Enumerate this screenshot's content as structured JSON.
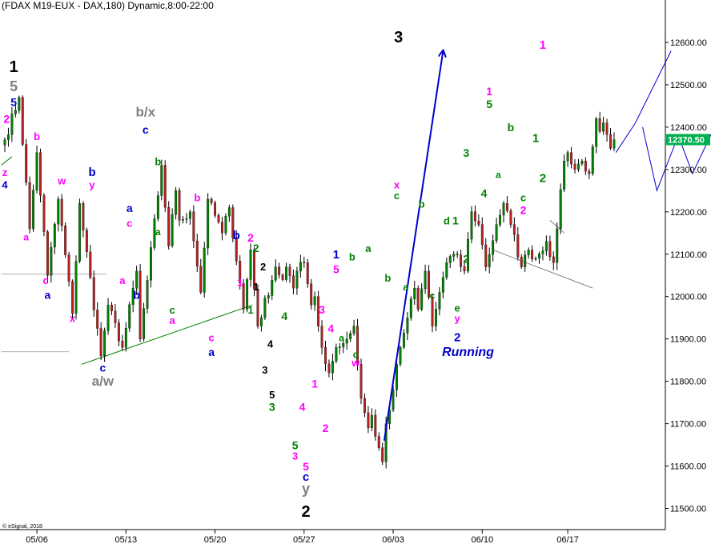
{
  "chart_data": {
    "type": "candlestick",
    "title": "(FDAX M19-EUX - DAX,180) Dynamic,8:00-22:00",
    "watermark": "© eSignal, 2018",
    "current_price": 12370.5,
    "current_price_label": "12370.50",
    "ylim": [
      11450,
      12700
    ],
    "y_ticks": [
      11500,
      11600,
      11700,
      11800,
      11900,
      12000,
      12100,
      12200,
      12300,
      12400,
      12500,
      12600
    ],
    "y_tick_labels": [
      "11500.00",
      "11600.00",
      "11700.00",
      "11800.00",
      "11900.00",
      "12000.00",
      "12100.00",
      "12200.00",
      "12300.00",
      "12400.00",
      "12500.00",
      "12600.00"
    ],
    "x_ticks": [
      {
        "label": "05/06",
        "x": 9
      },
      {
        "label": "05/13",
        "x": 34
      },
      {
        "label": "05/20",
        "x": 59
      },
      {
        "label": "05/27",
        "x": 84
      },
      {
        "label": "06/03",
        "x": 109
      },
      {
        "label": "06/10",
        "x": 134
      },
      {
        "label": "06/17",
        "x": 158
      }
    ],
    "colors": {
      "up": "#008000",
      "down": "#b22222",
      "pink": "#ff00ff",
      "green": "#008000",
      "blue": "#0000cd",
      "black": "#000000",
      "gray": "#808080",
      "projection": "#0000cd",
      "price_tag": "#00b050"
    },
    "pivots": [
      [
        0,
        12370
      ],
      [
        4,
        12470
      ],
      [
        7,
        12160
      ],
      [
        9,
        12340
      ],
      [
        12,
        12050
      ],
      [
        15,
        12230
      ],
      [
        19,
        11960
      ],
      [
        21,
        12220
      ],
      [
        27,
        11860
      ],
      [
        29,
        11980
      ],
      [
        33,
        11880
      ],
      [
        37,
        12060
      ],
      [
        38,
        11900
      ],
      [
        44,
        12310
      ],
      [
        46,
        12120
      ],
      [
        48,
        12250
      ],
      [
        49,
        12180
      ],
      [
        52,
        12200
      ],
      [
        55,
        12010
      ],
      [
        57,
        12230
      ],
      [
        61,
        12150
      ],
      [
        63,
        12210
      ],
      [
        67,
        11970
      ],
      [
        69,
        12110
      ],
      [
        71,
        11930
      ],
      [
        76,
        12070
      ],
      [
        78,
        12040
      ],
      [
        79,
        12070
      ],
      [
        81,
        12020
      ],
      [
        82,
        12060
      ],
      [
        84,
        12080
      ],
      [
        86,
        11980
      ],
      [
        87,
        12000
      ],
      [
        88,
        11930
      ],
      [
        89,
        11880
      ],
      [
        91,
        11820
      ],
      [
        93,
        11880
      ],
      [
        96,
        11900
      ],
      [
        98,
        11930
      ],
      [
        100,
        11760
      ],
      [
        102,
        11690
      ],
      [
        103,
        11720
      ],
      [
        104,
        11670
      ],
      [
        106,
        11610
      ],
      [
        107,
        11700
      ],
      [
        109,
        11780
      ],
      [
        111,
        11880
      ],
      [
        113,
        11950
      ],
      [
        115,
        12020
      ],
      [
        116,
        11970
      ],
      [
        118,
        12060
      ],
      [
        120,
        11930
      ],
      [
        122,
        12010
      ],
      [
        124,
        12080
      ],
      [
        126,
        12100
      ],
      [
        129,
        12060
      ],
      [
        131,
        12200
      ],
      [
        133,
        12170
      ],
      [
        135,
        12070
      ],
      [
        138,
        12170
      ],
      [
        140,
        12220
      ],
      [
        142,
        12170
      ],
      [
        145,
        12070
      ],
      [
        147,
        12110
      ],
      [
        149,
        12090
      ],
      [
        152,
        12130
      ],
      [
        154,
        12080
      ],
      [
        155,
        12160
      ],
      [
        157,
        12320
      ],
      [
        158,
        12340
      ],
      [
        160,
        12300
      ],
      [
        162,
        12320
      ],
      [
        164,
        12290
      ],
      [
        166,
        12420
      ],
      [
        167,
        12390
      ],
      [
        168,
        12410
      ],
      [
        170,
        12350
      ],
      [
        171,
        12370
      ]
    ],
    "trendlines": [
      {
        "name": "a-w-support",
        "color": "#008000",
        "points": [
          [
            21.5,
            11840
          ],
          [
            69.5,
            11980
          ]
        ]
      },
      {
        "name": "left-support",
        "color": "#008000",
        "points": [
          [
            -1,
            12310
          ],
          [
            2,
            12330
          ]
        ]
      },
      {
        "name": "x-c-channel",
        "color": "#808080",
        "points": [
          [
            137,
            12110
          ],
          [
            165,
            12020
          ]
        ]
      },
      {
        "name": "d-channel",
        "color": "#808080",
        "points": [
          [
            153,
            12180
          ],
          [
            157,
            12150
          ]
        ]
      },
      {
        "name": "horizontal-level-1",
        "color": "#b0b0b0",
        "points": [
          [
            -1,
            12053
          ],
          [
            28.5,
            12053
          ]
        ]
      },
      {
        "name": "horizontal-level-2",
        "color": "#b0b0b0",
        "points": [
          [
            -1,
            11870
          ],
          [
            18,
            11870
          ]
        ]
      }
    ],
    "projections": [
      {
        "name": "wave-3-arrow",
        "color": "#0000cd",
        "points": [
          [
            106.5,
            11660
          ],
          [
            123,
            12580
          ]
        ],
        "arrow": true,
        "width": 2
      },
      {
        "name": "bullish-path",
        "color": "#0000cd",
        "points": [
          [
            171.5,
            12340
          ],
          [
            177,
            12410
          ],
          [
            187,
            12580
          ]
        ],
        "width": 1
      },
      {
        "name": "alternate-path",
        "color": "#0000cd",
        "points": [
          [
            179,
            12400
          ],
          [
            183,
            12250
          ],
          [
            189,
            12380
          ],
          [
            193,
            12290
          ],
          [
            202,
            12450
          ]
        ],
        "width": 1
      }
    ],
    "wave_labels": [
      {
        "text": "1",
        "color": "black",
        "bar": 2.5,
        "price": 12530,
        "size": 20
      },
      {
        "text": "5",
        "color": "gray",
        "bar": 2.5,
        "price": 12485,
        "size": 18
      },
      {
        "text": "5",
        "color": "blue",
        "bar": 2.5,
        "price": 12450,
        "size": 14
      },
      {
        "text": "2",
        "color": "pink",
        "bar": 0.5,
        "price": 12410,
        "size": 14
      },
      {
        "text": "z",
        "color": "pink",
        "bar": 0,
        "price": 12285,
        "size": 13
      },
      {
        "text": "4",
        "color": "blue",
        "bar": 0,
        "price": 12255,
        "size": 13
      },
      {
        "text": "b",
        "color": "pink",
        "bar": 9,
        "price": 12370,
        "size": 13
      },
      {
        "text": "a",
        "color": "pink",
        "bar": 6,
        "price": 12133,
        "size": 12
      },
      {
        "text": "w",
        "color": "pink",
        "bar": 16,
        "price": 12265,
        "size": 13
      },
      {
        "text": "c",
        "color": "pink",
        "bar": 11.5,
        "price": 12030,
        "size": 13
      },
      {
        "text": "a",
        "color": "blue",
        "bar": 12,
        "price": 11995,
        "size": 14
      },
      {
        "text": "x",
        "color": "pink",
        "bar": 19,
        "price": 11940,
        "size": 13
      },
      {
        "text": "b",
        "color": "blue",
        "bar": 24.5,
        "price": 12285,
        "size": 15
      },
      {
        "text": "y",
        "color": "pink",
        "bar": 24.5,
        "price": 12255,
        "size": 13
      },
      {
        "text": "c",
        "color": "blue",
        "bar": 27.5,
        "price": 11823,
        "size": 14
      },
      {
        "text": "a/w",
        "color": "gray",
        "bar": 27.5,
        "price": 11790,
        "size": 17
      },
      {
        "text": "a",
        "color": "pink",
        "bar": 33,
        "price": 12030,
        "size": 13
      },
      {
        "text": "c",
        "color": "pink",
        "bar": 35,
        "price": 12165,
        "size": 13
      },
      {
        "text": "a",
        "color": "blue",
        "bar": 35,
        "price": 12200,
        "size": 14
      },
      {
        "text": "b",
        "color": "blue",
        "bar": 37,
        "price": 11995,
        "size": 14
      },
      {
        "text": "b/x",
        "color": "gray",
        "bar": 39.5,
        "price": 12425,
        "size": 17
      },
      {
        "text": "c",
        "color": "blue",
        "bar": 39.5,
        "price": 12385,
        "size": 14
      },
      {
        "text": "b",
        "color": "green",
        "bar": 43,
        "price": 12310,
        "size": 13
      },
      {
        "text": "a",
        "color": "green",
        "bar": 43,
        "price": 12145,
        "size": 12
      },
      {
        "text": "b",
        "color": "pink",
        "bar": 54,
        "price": 12225,
        "size": 13
      },
      {
        "text": "c",
        "color": "green",
        "bar": 47,
        "price": 11960,
        "size": 13
      },
      {
        "text": "a",
        "color": "pink",
        "bar": 47,
        "price": 11935,
        "size": 13
      },
      {
        "text": "c",
        "color": "pink",
        "bar": 58,
        "price": 11895,
        "size": 13
      },
      {
        "text": "a",
        "color": "blue",
        "bar": 58,
        "price": 11860,
        "size": 14
      },
      {
        "text": "b",
        "color": "blue",
        "bar": 65,
        "price": 12135,
        "size": 15
      },
      {
        "text": "1",
        "color": "pink",
        "bar": 66,
        "price": 12025,
        "size": 13
      },
      {
        "text": "2",
        "color": "pink",
        "bar": 69,
        "price": 12130,
        "size": 14
      },
      {
        "text": "2",
        "color": "green",
        "bar": 70.5,
        "price": 12105,
        "size": 14
      },
      {
        "text": "2",
        "color": "black",
        "bar": 72.5,
        "price": 12062,
        "size": 13
      },
      {
        "text": "1",
        "color": "black",
        "bar": 70.5,
        "price": 12015,
        "size": 13
      },
      {
        "text": "1",
        "color": "green",
        "bar": 69,
        "price": 11960,
        "size": 13
      },
      {
        "text": "4",
        "color": "green",
        "bar": 78.5,
        "price": 11945,
        "size": 14
      },
      {
        "text": "4",
        "color": "black",
        "bar": 74.5,
        "price": 11880,
        "size": 13
      },
      {
        "text": "3",
        "color": "black",
        "bar": 73,
        "price": 11818,
        "size": 13
      },
      {
        "text": "5",
        "color": "black",
        "bar": 75,
        "price": 11760,
        "size": 13
      },
      {
        "text": "3",
        "color": "green",
        "bar": 75,
        "price": 11730,
        "size": 14
      },
      {
        "text": "4",
        "color": "pink",
        "bar": 83.5,
        "price": 11730,
        "size": 14
      },
      {
        "text": "5",
        "color": "green",
        "bar": 81.5,
        "price": 11640,
        "size": 14
      },
      {
        "text": "3",
        "color": "pink",
        "bar": 81.5,
        "price": 11615,
        "size": 13
      },
      {
        "text": "1",
        "color": "pink",
        "bar": 87,
        "price": 11785,
        "size": 14
      },
      {
        "text": "2",
        "color": "pink",
        "bar": 90,
        "price": 11680,
        "size": 14
      },
      {
        "text": "5",
        "color": "pink",
        "bar": 84.5,
        "price": 11590,
        "size": 14
      },
      {
        "text": "c",
        "color": "blue",
        "bar": 84.5,
        "price": 11565,
        "size": 15
      },
      {
        "text": "y",
        "color": "gray",
        "bar": 84.5,
        "price": 11535,
        "size": 18
      },
      {
        "text": "2",
        "color": "black",
        "bar": 84.5,
        "price": 11480,
        "size": 20
      },
      {
        "text": "3",
        "color": "pink",
        "bar": 89,
        "price": 11960,
        "size": 14
      },
      {
        "text": "4",
        "color": "pink",
        "bar": 91.5,
        "price": 11915,
        "size": 14
      },
      {
        "text": "1",
        "color": "blue",
        "bar": 93,
        "price": 12090,
        "size": 15
      },
      {
        "text": "5",
        "color": "pink",
        "bar": 93,
        "price": 12055,
        "size": 14
      },
      {
        "text": "a",
        "color": "green",
        "bar": 94.5,
        "price": 11895,
        "size": 12
      },
      {
        "text": "b",
        "color": "green",
        "bar": 97.5,
        "price": 12085,
        "size": 13
      },
      {
        "text": "c",
        "color": "green",
        "bar": 98.5,
        "price": 11855,
        "size": 13
      },
      {
        "text": "w",
        "color": "pink",
        "bar": 98.5,
        "price": 11835,
        "size": 13
      },
      {
        "text": "a",
        "color": "green",
        "bar": 102,
        "price": 12105,
        "size": 13
      },
      {
        "text": "b",
        "color": "green",
        "bar": 107.5,
        "price": 12035,
        "size": 13
      },
      {
        "text": "x",
        "color": "pink",
        "bar": 110,
        "price": 12255,
        "size": 13
      },
      {
        "text": "c",
        "color": "green",
        "bar": 110,
        "price": 12230,
        "size": 13
      },
      {
        "text": "a",
        "color": "green",
        "bar": 112.5,
        "price": 12015,
        "size": 12
      },
      {
        "text": "b",
        "color": "green",
        "bar": 117,
        "price": 12210,
        "size": 13
      },
      {
        "text": "c",
        "color": "green",
        "bar": 120,
        "price": 11995,
        "size": 12
      },
      {
        "text": "d",
        "color": "green",
        "bar": 124,
        "price": 12170,
        "size": 13
      },
      {
        "text": "1",
        "color": "green",
        "bar": 126.5,
        "price": 12170,
        "size": 14
      },
      {
        "text": "2",
        "color": "green",
        "bar": 129.5,
        "price": 12080,
        "size": 14
      },
      {
        "text": "e",
        "color": "green",
        "bar": 127,
        "price": 11965,
        "size": 13
      },
      {
        "text": "y",
        "color": "pink",
        "bar": 127,
        "price": 11940,
        "size": 13
      },
      {
        "text": "2",
        "color": "blue",
        "bar": 127,
        "price": 11895,
        "size": 15
      },
      {
        "text": "Running",
        "color": "blue",
        "bar": 130,
        "price": 11860,
        "size": 16,
        "italic": true
      },
      {
        "text": "3",
        "color": "green",
        "bar": 129.5,
        "price": 12330,
        "size": 14
      },
      {
        "text": "4",
        "color": "green",
        "bar": 134.5,
        "price": 12235,
        "size": 14
      },
      {
        "text": "1",
        "color": "pink",
        "bar": 136,
        "price": 12475,
        "size": 14
      },
      {
        "text": "5",
        "color": "green",
        "bar": 136,
        "price": 12445,
        "size": 14
      },
      {
        "text": "a",
        "color": "green",
        "bar": 138.5,
        "price": 12280,
        "size": 12
      },
      {
        "text": "b",
        "color": "green",
        "bar": 142,
        "price": 12390,
        "size": 14
      },
      {
        "text": "c",
        "color": "green",
        "bar": 145.5,
        "price": 12225,
        "size": 13
      },
      {
        "text": "2",
        "color": "pink",
        "bar": 145.5,
        "price": 12195,
        "size": 14
      },
      {
        "text": "1",
        "color": "green",
        "bar": 149,
        "price": 12365,
        "size": 15
      },
      {
        "text": "2",
        "color": "green",
        "bar": 151,
        "price": 12270,
        "size": 15
      },
      {
        "text": "1",
        "color": "pink",
        "bar": 151,
        "price": 12585,
        "size": 15
      },
      {
        "text": "3",
        "color": "black",
        "bar": 110.5,
        "price": 12600,
        "size": 20
      }
    ]
  }
}
